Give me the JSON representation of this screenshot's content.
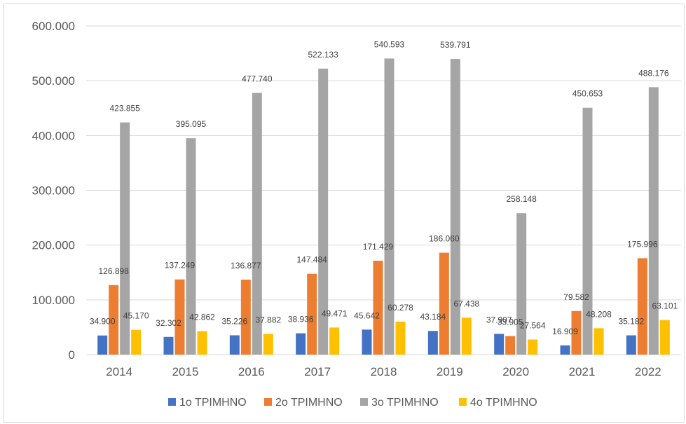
{
  "chart_data": {
    "type": "bar",
    "categories": [
      "2014",
      "2015",
      "2016",
      "2017",
      "2018",
      "2019",
      "2020",
      "2021",
      "2022"
    ],
    "series": [
      {
        "name": "1ο ΤΡΙΜΗΝΟ",
        "color": "#4472C4",
        "values": [
          34900,
          32302,
          35226,
          38936,
          45642,
          43184,
          37907,
          16909,
          35182
        ]
      },
      {
        "name": "2ο ΤΡΙΜΗΝΟ",
        "color": "#ED7D31",
        "values": [
          126898,
          137249,
          136877,
          147484,
          171429,
          186060,
          33905,
          79582,
          175996
        ]
      },
      {
        "name": "3ο ΤΡΙΜΗΝΟ",
        "color": "#A5A5A5",
        "values": [
          423855,
          395095,
          477740,
          522133,
          540593,
          539791,
          258148,
          450653,
          488176
        ]
      },
      {
        "name": "4ο ΤΡΙΜΗΝΟ",
        "color": "#FFC000",
        "values": [
          45170,
          42862,
          37882,
          49471,
          60278,
          67438,
          27564,
          48208,
          63101
        ]
      }
    ],
    "data_labels": [
      [
        "34.900",
        "32.302",
        "35.226",
        "38.936",
        "45.642",
        "43.184",
        "37.907",
        "16.909",
        "35.182"
      ],
      [
        "126.898",
        "137.249",
        "136.877",
        "147.484",
        "171.429",
        "186.060",
        "33.905",
        "79.582",
        "175.996"
      ],
      [
        "423.855",
        "395.095",
        "477.740",
        "522.133",
        "540.593",
        "539.791",
        "258.148",
        "450.653",
        "488.176"
      ],
      [
        "45.170",
        "42.862",
        "37.882",
        "49.471",
        "60.278",
        "67.438",
        "27.564",
        "48.208",
        "63.101"
      ]
    ],
    "y_ticks": [
      0,
      100000,
      200000,
      300000,
      400000,
      500000,
      600000
    ],
    "y_tick_labels": [
      "0",
      "100.000",
      "200.000",
      "300.000",
      "400.000",
      "500.000",
      "600.000"
    ],
    "ylim": [
      0,
      600000
    ],
    "grid": true,
    "legend_position": "bottom",
    "title": "",
    "xlabel": "",
    "ylabel": ""
  }
}
